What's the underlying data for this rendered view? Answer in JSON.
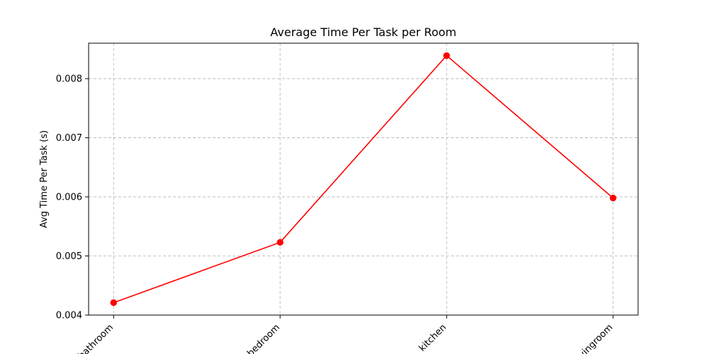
{
  "chart_data": {
    "type": "line",
    "title": "Average Time Per Task per Room",
    "xlabel": "",
    "ylabel": "Avg Time Per Task (s)",
    "categories": [
      "bathroom",
      "bedroom",
      "kitchen",
      "livingroom"
    ],
    "series": [
      {
        "values": [
          0.00421,
          0.00523,
          0.00839,
          0.00598
        ]
      }
    ],
    "ylim": [
      0.004,
      0.0086
    ],
    "yticks": [
      "0.004",
      "0.005",
      "0.006",
      "0.007",
      "0.008"
    ],
    "grid": true,
    "color": "#ff0000"
  }
}
